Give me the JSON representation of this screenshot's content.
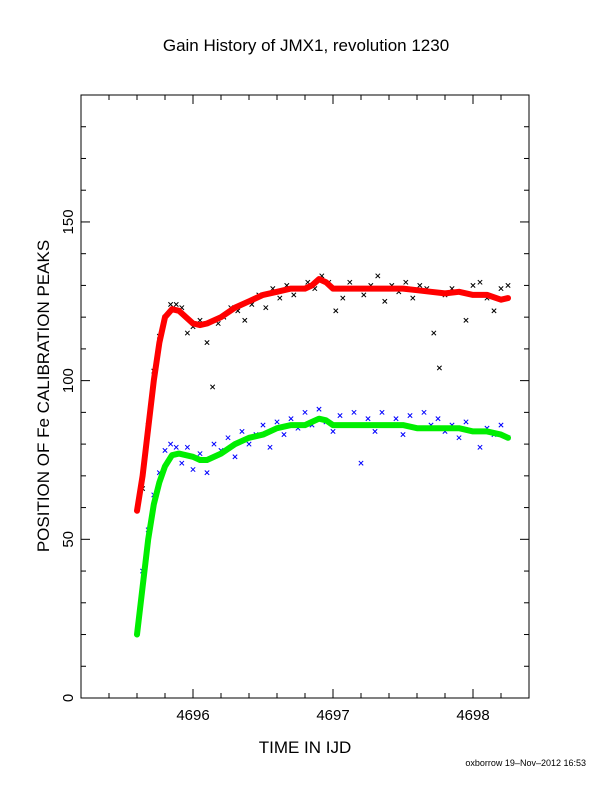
{
  "chart_data": {
    "type": "scatter",
    "title": "Gain History of JMX1, revolution 1230",
    "xlabel": "TIME IN IJD",
    "ylabel": "POSITION OF Fe CALIBRATION PEAKS",
    "xlim": [
      4695.2,
      4698.4
    ],
    "ylim": [
      0,
      190
    ],
    "xticks": [
      4696,
      4697,
      4698
    ],
    "yticks": [
      0,
      50,
      100,
      150
    ],
    "grid": false,
    "series": [
      {
        "kind": "scatter",
        "marker": "x",
        "color": "#000000",
        "points": [
          [
            4695.64,
            66
          ],
          [
            4695.68,
            86
          ],
          [
            4695.72,
            103
          ],
          [
            4695.76,
            114
          ],
          [
            4695.8,
            120
          ],
          [
            4695.84,
            124
          ],
          [
            4695.88,
            124
          ],
          [
            4695.92,
            123
          ],
          [
            4695.96,
            115
          ],
          [
            4696.0,
            117
          ],
          [
            4696.05,
            119
          ],
          [
            4696.1,
            112
          ],
          [
            4696.14,
            98
          ],
          [
            4696.18,
            118
          ],
          [
            4696.22,
            120
          ],
          [
            4696.27,
            123
          ],
          [
            4696.32,
            122
          ],
          [
            4696.37,
            119
          ],
          [
            4696.42,
            124
          ],
          [
            4696.47,
            127
          ],
          [
            4696.52,
            123
          ],
          [
            4696.57,
            129
          ],
          [
            4696.62,
            126
          ],
          [
            4696.67,
            130
          ],
          [
            4696.72,
            127
          ],
          [
            4696.77,
            129
          ],
          [
            4696.82,
            131
          ],
          [
            4696.87,
            129
          ],
          [
            4696.92,
            133
          ],
          [
            4696.97,
            131
          ],
          [
            4697.02,
            122
          ],
          [
            4697.07,
            126
          ],
          [
            4697.12,
            131
          ],
          [
            4697.17,
            129
          ],
          [
            4697.22,
            127
          ],
          [
            4697.27,
            130
          ],
          [
            4697.32,
            133
          ],
          [
            4697.37,
            125
          ],
          [
            4697.42,
            130
          ],
          [
            4697.47,
            128
          ],
          [
            4697.52,
            131
          ],
          [
            4697.57,
            126
          ],
          [
            4697.62,
            130
          ],
          [
            4697.67,
            129
          ],
          [
            4697.72,
            115
          ],
          [
            4697.76,
            104
          ],
          [
            4697.8,
            127
          ],
          [
            4697.85,
            129
          ],
          [
            4697.9,
            128
          ],
          [
            4697.95,
            119
          ],
          [
            4698.0,
            130
          ],
          [
            4698.05,
            131
          ],
          [
            4698.1,
            126
          ],
          [
            4698.15,
            122
          ],
          [
            4698.2,
            129
          ],
          [
            4698.25,
            130
          ]
        ]
      },
      {
        "kind": "scatter",
        "marker": "x",
        "color": "#0000ff",
        "points": [
          [
            4695.64,
            40
          ],
          [
            4695.68,
            53
          ],
          [
            4695.72,
            64
          ],
          [
            4695.76,
            71
          ],
          [
            4695.8,
            78
          ],
          [
            4695.84,
            80
          ],
          [
            4695.88,
            79
          ],
          [
            4695.92,
            74
          ],
          [
            4695.96,
            79
          ],
          [
            4696.0,
            72
          ],
          [
            4696.05,
            77
          ],
          [
            4696.1,
            71
          ],
          [
            4696.15,
            80
          ],
          [
            4696.2,
            78
          ],
          [
            4696.25,
            82
          ],
          [
            4696.3,
            76
          ],
          [
            4696.35,
            84
          ],
          [
            4696.4,
            80
          ],
          [
            4696.45,
            83
          ],
          [
            4696.5,
            86
          ],
          [
            4696.55,
            79
          ],
          [
            4696.6,
            87
          ],
          [
            4696.65,
            83
          ],
          [
            4696.7,
            88
          ],
          [
            4696.75,
            85
          ],
          [
            4696.8,
            90
          ],
          [
            4696.85,
            86
          ],
          [
            4696.9,
            91
          ],
          [
            4696.95,
            87
          ],
          [
            4697.0,
            84
          ],
          [
            4697.05,
            89
          ],
          [
            4697.1,
            86
          ],
          [
            4697.15,
            90
          ],
          [
            4697.2,
            74
          ],
          [
            4697.25,
            88
          ],
          [
            4697.3,
            84
          ],
          [
            4697.35,
            90
          ],
          [
            4697.4,
            86
          ],
          [
            4697.45,
            88
          ],
          [
            4697.5,
            83
          ],
          [
            4697.55,
            89
          ],
          [
            4697.6,
            85
          ],
          [
            4697.65,
            90
          ],
          [
            4697.7,
            86
          ],
          [
            4697.75,
            88
          ],
          [
            4697.8,
            84
          ],
          [
            4697.85,
            86
          ],
          [
            4697.9,
            82
          ],
          [
            4697.95,
            87
          ],
          [
            4698.0,
            84
          ],
          [
            4698.05,
            79
          ],
          [
            4698.1,
            85
          ],
          [
            4698.15,
            83
          ],
          [
            4698.2,
            86
          ],
          [
            4698.25,
            82
          ]
        ]
      },
      {
        "kind": "line",
        "color": "#ff0000",
        "points": [
          [
            4695.6,
            59
          ],
          [
            4695.64,
            70
          ],
          [
            4695.68,
            85
          ],
          [
            4695.72,
            100
          ],
          [
            4695.76,
            112
          ],
          [
            4695.8,
            120
          ],
          [
            4695.85,
            122.5
          ],
          [
            4695.9,
            122
          ],
          [
            4695.95,
            120
          ],
          [
            4696.0,
            118
          ],
          [
            4696.05,
            117.5
          ],
          [
            4696.1,
            118
          ],
          [
            4696.2,
            120
          ],
          [
            4696.3,
            123
          ],
          [
            4696.4,
            125
          ],
          [
            4696.5,
            127
          ],
          [
            4696.6,
            128
          ],
          [
            4696.7,
            129
          ],
          [
            4696.8,
            129
          ],
          [
            4696.85,
            130
          ],
          [
            4696.9,
            132
          ],
          [
            4696.95,
            131
          ],
          [
            4697.0,
            129
          ],
          [
            4697.1,
            129
          ],
          [
            4697.2,
            129
          ],
          [
            4697.3,
            129
          ],
          [
            4697.4,
            129
          ],
          [
            4697.5,
            129
          ],
          [
            4697.6,
            128.5
          ],
          [
            4697.7,
            128
          ],
          [
            4697.8,
            127.5
          ],
          [
            4697.9,
            128
          ],
          [
            4698.0,
            127
          ],
          [
            4698.1,
            127
          ],
          [
            4698.2,
            125.5
          ],
          [
            4698.25,
            126
          ]
        ]
      },
      {
        "kind": "line",
        "color": "#00ee00",
        "points": [
          [
            4695.6,
            20
          ],
          [
            4695.64,
            35
          ],
          [
            4695.68,
            50
          ],
          [
            4695.72,
            61
          ],
          [
            4695.76,
            68
          ],
          [
            4695.8,
            73
          ],
          [
            4695.85,
            76.5
          ],
          [
            4695.9,
            77
          ],
          [
            4695.95,
            76.5
          ],
          [
            4696.0,
            76
          ],
          [
            4696.05,
            75
          ],
          [
            4696.1,
            75
          ],
          [
            4696.2,
            77
          ],
          [
            4696.3,
            80
          ],
          [
            4696.4,
            82
          ],
          [
            4696.5,
            83
          ],
          [
            4696.6,
            85
          ],
          [
            4696.7,
            86
          ],
          [
            4696.8,
            86
          ],
          [
            4696.85,
            87
          ],
          [
            4696.9,
            88
          ],
          [
            4696.95,
            87.5
          ],
          [
            4697.0,
            86
          ],
          [
            4697.1,
            86
          ],
          [
            4697.2,
            86
          ],
          [
            4697.3,
            86
          ],
          [
            4697.4,
            86
          ],
          [
            4697.5,
            86
          ],
          [
            4697.6,
            85
          ],
          [
            4697.7,
            85
          ],
          [
            4697.8,
            85
          ],
          [
            4697.9,
            85
          ],
          [
            4698.0,
            84
          ],
          [
            4698.1,
            84
          ],
          [
            4698.2,
            83
          ],
          [
            4698.25,
            82
          ]
        ]
      }
    ]
  },
  "credit": "oxborrow 19–Nov–2012 16:53"
}
